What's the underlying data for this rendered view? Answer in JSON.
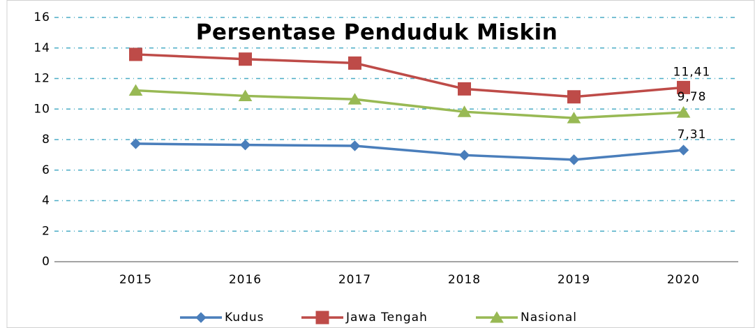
{
  "chart_data": {
    "type": "line",
    "title": "Persentase Penduduk Miskin",
    "categories": [
      "2015",
      "2016",
      "2017",
      "2018",
      "2019",
      "2020"
    ],
    "series": [
      {
        "name": "Kudus",
        "color": "#4a7ebb",
        "marker": "diamond",
        "values": [
          7.73,
          7.65,
          7.59,
          6.98,
          6.68,
          7.31
        ],
        "value_labels": [
          null,
          null,
          null,
          null,
          null,
          "7,31"
        ]
      },
      {
        "name": "Jawa Tengah",
        "color": "#be4b48",
        "marker": "square",
        "values": [
          13.58,
          13.27,
          13.01,
          11.32,
          10.8,
          11.41
        ],
        "value_labels": [
          null,
          null,
          null,
          null,
          null,
          "11,41"
        ]
      },
      {
        "name": "Nasional",
        "color": "#98b954",
        "marker": "triangle",
        "values": [
          11.22,
          10.86,
          10.64,
          9.82,
          9.41,
          9.78
        ],
        "value_labels": [
          null,
          null,
          null,
          null,
          null,
          "9,78"
        ]
      }
    ],
    "ylim": [
      0,
      16
    ],
    "yticks": [
      0,
      2,
      4,
      6,
      8,
      10,
      12,
      14,
      16
    ],
    "grid": true,
    "legend": "bottom"
  }
}
